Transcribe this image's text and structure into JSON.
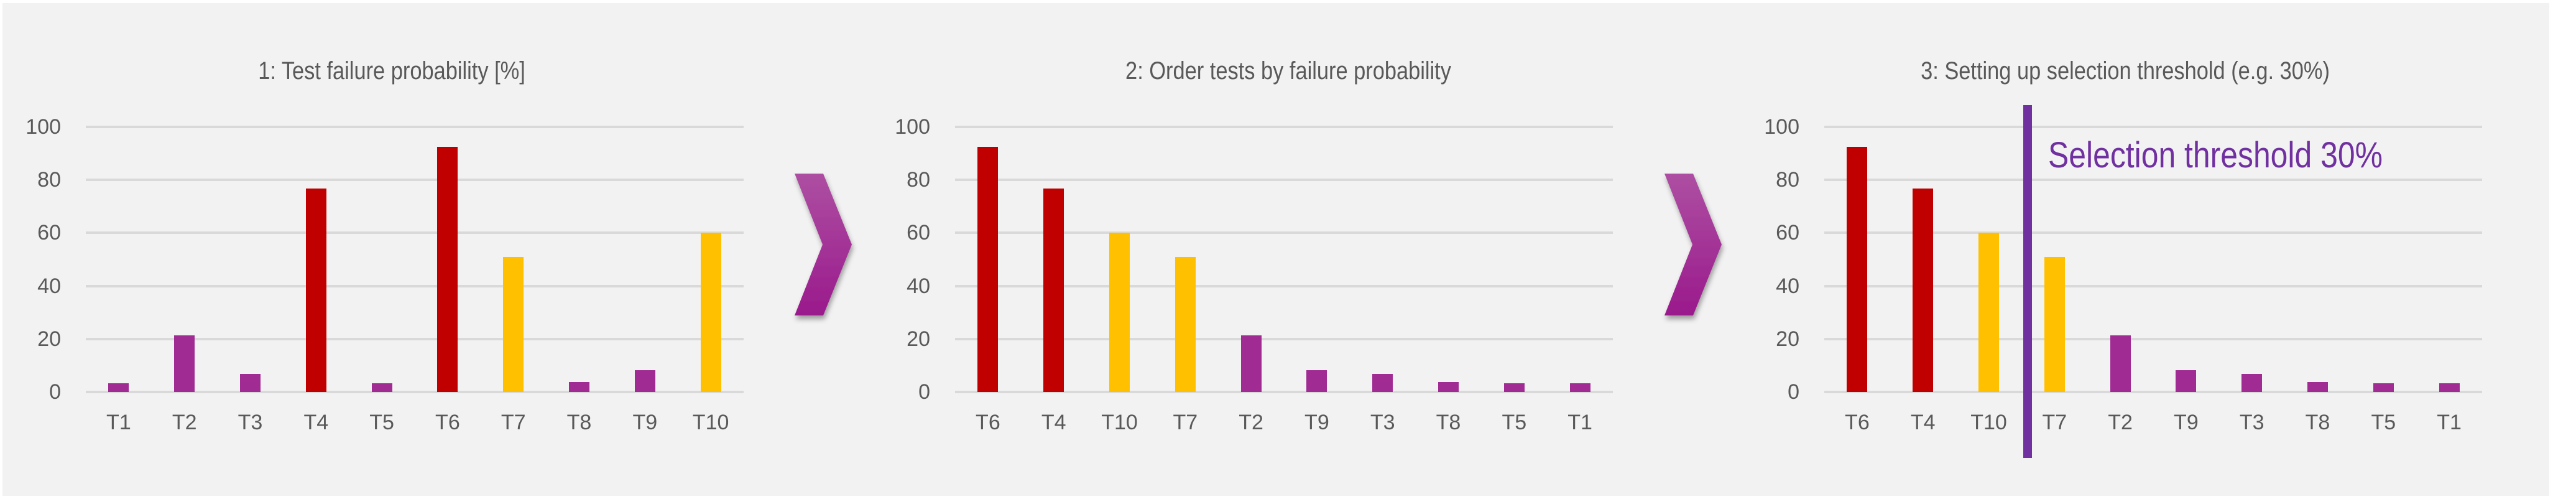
{
  "colors": {
    "background": "#F2F2F2",
    "gridline": "#D9D9D9",
    "text": "#595959",
    "high": "#C00000",
    "medium": "#FFC000",
    "low": "#A02B93",
    "threshold": "#7030A0",
    "arrow_top": "#AD4FA2",
    "arrow_bottom": "#9A1A8C"
  },
  "arrows": [
    {
      "icon": "chevron-right-icon"
    },
    {
      "icon": "chevron-right-icon"
    }
  ],
  "threshold": {
    "label": "Selection threshold 30%"
  },
  "chart_data": [
    {
      "type": "bar",
      "title": "1: Test failure probability [%]",
      "xlabel": "",
      "ylabel": "",
      "ylim": [
        0,
        100
      ],
      "yticks": [
        "0",
        "20",
        "40",
        "60",
        "80",
        "100"
      ],
      "grid": true,
      "legend": null,
      "categories": [
        "T1",
        "T2",
        "T3",
        "T4",
        "T5",
        "T6",
        "T7",
        "T8",
        "T9",
        "T10"
      ],
      "values": [
        3.2,
        21.4,
        6.9,
        76.8,
        3.2,
        92.6,
        51.0,
        3.7,
        8.1,
        60.0
      ],
      "bar_colors": [
        "low",
        "low",
        "low",
        "high",
        "low",
        "high",
        "medium",
        "low",
        "low",
        "medium"
      ]
    },
    {
      "type": "bar",
      "title": "2: Order tests by failure probability",
      "xlabel": "",
      "ylabel": "",
      "ylim": [
        0,
        100
      ],
      "yticks": [
        "0",
        "20",
        "40",
        "60",
        "80",
        "100"
      ],
      "grid": true,
      "legend": null,
      "categories": [
        "T6",
        "T4",
        "T10",
        "T7",
        "T2",
        "T9",
        "T3",
        "T8",
        "T5",
        "T1"
      ],
      "values": [
        92.6,
        76.8,
        60.0,
        51.0,
        21.4,
        8.1,
        6.9,
        3.7,
        3.2,
        3.2
      ],
      "bar_colors": [
        "high",
        "high",
        "medium",
        "medium",
        "low",
        "low",
        "low",
        "low",
        "low",
        "low"
      ]
    },
    {
      "type": "bar",
      "title": "3: Setting up selection threshold (e.g. 30%)",
      "xlabel": "",
      "ylabel": "",
      "ylim": [
        0,
        100
      ],
      "yticks": [
        "0",
        "20",
        "40",
        "60",
        "80",
        "100"
      ],
      "grid": true,
      "legend": null,
      "categories": [
        "T6",
        "T4",
        "T10",
        "T7",
        "T2",
        "T9",
        "T3",
        "T8",
        "T5",
        "T1"
      ],
      "values": [
        92.6,
        76.8,
        60.0,
        51.0,
        21.4,
        8.1,
        6.9,
        3.7,
        3.2,
        3.2
      ],
      "bar_colors": [
        "high",
        "high",
        "medium",
        "medium",
        "low",
        "low",
        "low",
        "low",
        "low",
        "low"
      ],
      "annotations": [
        {
          "type": "vertical-line",
          "between": [
            "T10",
            "T7"
          ],
          "label": "Selection threshold 30%"
        }
      ]
    }
  ]
}
